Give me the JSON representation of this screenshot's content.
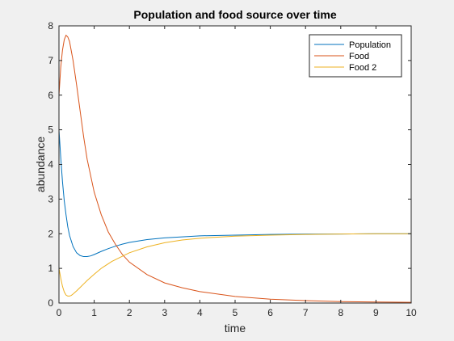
{
  "chart_data": {
    "type": "line",
    "title": "Population and food source over time",
    "xlabel": "time",
    "ylabel": "abundance",
    "xlim": [
      0,
      10
    ],
    "ylim": [
      0,
      8
    ],
    "xticks": [
      "0",
      "1",
      "2",
      "3",
      "4",
      "5",
      "6",
      "7",
      "8",
      "9",
      "10"
    ],
    "yticks": [
      "0",
      "1",
      "2",
      "3",
      "4",
      "5",
      "6",
      "7",
      "8"
    ],
    "grid": false,
    "legend_position": "top-right",
    "series": [
      {
        "name": "Population",
        "color": "#0072bd",
        "x": [
          0,
          0.05,
          0.1,
          0.15,
          0.2,
          0.25,
          0.3,
          0.4,
          0.5,
          0.6,
          0.7,
          0.8,
          0.9,
          1.0,
          1.2,
          1.4,
          1.6,
          1.8,
          2.0,
          2.5,
          3.0,
          3.5,
          4.0,
          5.0,
          6.0,
          7.0,
          8.0,
          9.0,
          10.0
        ],
        "y": [
          5.0,
          4.2,
          3.5,
          2.95,
          2.55,
          2.2,
          1.95,
          1.63,
          1.45,
          1.37,
          1.34,
          1.34,
          1.36,
          1.4,
          1.49,
          1.57,
          1.64,
          1.7,
          1.75,
          1.83,
          1.88,
          1.91,
          1.94,
          1.96,
          1.98,
          1.99,
          1.99,
          2.0,
          2.0
        ]
      },
      {
        "name": "Food",
        "color": "#d95319",
        "x": [
          0,
          0.05,
          0.1,
          0.15,
          0.2,
          0.25,
          0.3,
          0.4,
          0.5,
          0.6,
          0.7,
          0.8,
          1.0,
          1.2,
          1.4,
          1.6,
          1.8,
          2.0,
          2.5,
          3.0,
          3.5,
          4.0,
          5.0,
          6.0,
          7.0,
          8.0,
          9.0,
          10.0
        ],
        "y": [
          6.0,
          6.8,
          7.3,
          7.6,
          7.73,
          7.68,
          7.55,
          7.0,
          6.3,
          5.55,
          4.8,
          4.15,
          3.2,
          2.55,
          2.05,
          1.7,
          1.4,
          1.18,
          0.82,
          0.58,
          0.44,
          0.33,
          0.19,
          0.11,
          0.07,
          0.04,
          0.03,
          0.02
        ]
      },
      {
        "name": "Food 2",
        "color": "#edb120",
        "x": [
          0,
          0.05,
          0.1,
          0.15,
          0.2,
          0.25,
          0.3,
          0.35,
          0.4,
          0.5,
          0.6,
          0.7,
          0.8,
          1.0,
          1.2,
          1.5,
          2.0,
          2.5,
          3.0,
          3.5,
          4.0,
          4.5,
          5.0,
          6.0,
          7.0,
          8.0,
          9.0,
          10.0
        ],
        "y": [
          1.0,
          0.72,
          0.48,
          0.32,
          0.23,
          0.2,
          0.2,
          0.22,
          0.26,
          0.35,
          0.45,
          0.55,
          0.65,
          0.83,
          1.0,
          1.2,
          1.45,
          1.62,
          1.74,
          1.82,
          1.87,
          1.9,
          1.93,
          1.96,
          1.98,
          1.99,
          2.0,
          2.0
        ]
      }
    ]
  }
}
